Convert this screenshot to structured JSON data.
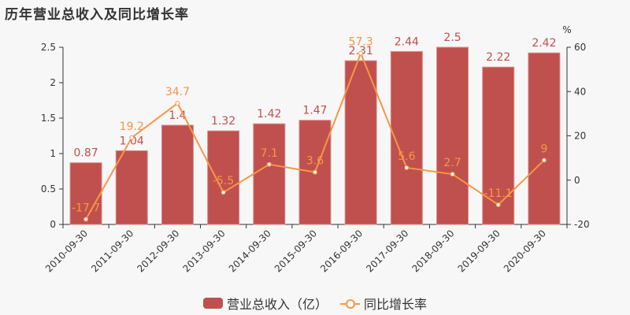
{
  "title": "历年营业总收入及同比增长率",
  "legend": {
    "bar_label": "营业总收入（亿）",
    "line_label": "同比增长率"
  },
  "colors": {
    "bar": "#c0504d",
    "line": "#f79646",
    "axis": "#333333",
    "background": "#f7f7f7"
  },
  "chart_data": {
    "type": "bar+line",
    "title": "历年营业总收入及同比增长率",
    "categories": [
      "2010-09-30",
      "2011-09-30",
      "2012-09-30",
      "2013-09-30",
      "2014-09-30",
      "2015-09-30",
      "2016-09-30",
      "2017-09-30",
      "2018-09-30",
      "2019-09-30",
      "2020-09-30"
    ],
    "series": [
      {
        "name": "营业总收入（亿）",
        "type": "bar",
        "axis": "left",
        "values": [
          0.87,
          1.04,
          1.4,
          1.32,
          1.42,
          1.47,
          2.31,
          2.44,
          2.5,
          2.22,
          2.42
        ]
      },
      {
        "name": "同比增长率",
        "type": "line",
        "axis": "right",
        "values": [
          -17.7,
          19.2,
          34.7,
          -5.5,
          7.1,
          3.6,
          57.3,
          5.6,
          2.7,
          -11.1,
          9
        ]
      }
    ],
    "left_axis": {
      "ylim": [
        0,
        2.5
      ],
      "ticks": [
        "0",
        "0.5",
        "1",
        "1.5",
        "2",
        "2.5"
      ]
    },
    "right_axis": {
      "label": "%",
      "ylim": [
        -20,
        60
      ],
      "ticks": [
        "-20",
        "0",
        "20",
        "40",
        "60"
      ]
    },
    "legend_position": "bottom",
    "grid": false
  }
}
